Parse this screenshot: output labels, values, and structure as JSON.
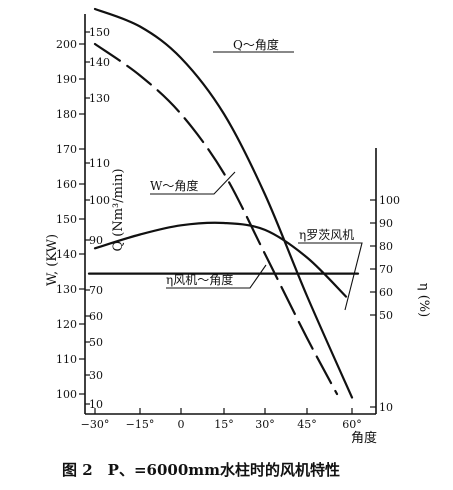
{
  "chart_data": {
    "type": "line",
    "caption": "图 2　P、=6000mm水柱时的风机特性",
    "xlabel": "角度",
    "x_ticks": [
      {
        "v": -30,
        "label": "−30°"
      },
      {
        "v": -15,
        "label": "−15°"
      },
      {
        "v": 0,
        "label": "0"
      },
      {
        "v": 15,
        "label": "15°"
      },
      {
        "v": 30,
        "label": "30°"
      },
      {
        "v": 45,
        "label": "45°"
      },
      {
        "v": 60,
        "label": "60°"
      }
    ],
    "xlim": [
      -32,
      62
    ],
    "axes": {
      "W": {
        "label": "W, (KW)",
        "ticks": [
          100,
          110,
          120,
          130,
          140,
          150,
          160,
          170,
          180,
          190,
          200
        ],
        "lim": [
          95,
          210
        ]
      },
      "Q": {
        "label": "Q (Nm³/min)",
        "ticks": [
          10,
          30,
          50,
          60,
          70,
          90,
          100,
          110,
          130,
          140,
          150
        ],
        "tick_labels": [
          "10",
          "30",
          "50",
          "60",
          "70",
          "90",
          "100",
          "110",
          "130",
          "140",
          "150"
        ]
      },
      "eta": {
        "label": "η (%)",
        "ticks": [
          10,
          50,
          60,
          70,
          80,
          90,
          100
        ],
        "lim": [
          5,
          125
        ]
      }
    },
    "series": [
      {
        "name": "Q～角度",
        "axis": "W",
        "dash": "solid",
        "points": [
          [
            -30,
            210
          ],
          [
            -15,
            205
          ],
          [
            0,
            196
          ],
          [
            15,
            180
          ],
          [
            30,
            157
          ],
          [
            45,
            128
          ],
          [
            60,
            99
          ]
        ]
      },
      {
        "name": "W～角度",
        "axis": "W",
        "dash": "dashed",
        "points": [
          [
            -30,
            200
          ],
          [
            -15,
            191
          ],
          [
            0,
            180
          ],
          [
            15,
            163
          ],
          [
            30,
            140
          ],
          [
            45,
            116
          ],
          [
            55,
            100
          ]
        ]
      },
      {
        "name": "η风机～角度",
        "axis": "eta",
        "dash": "solid",
        "points": [
          [
            -30,
            79
          ],
          [
            -15,
            85
          ],
          [
            0,
            89
          ],
          [
            15,
            90
          ],
          [
            30,
            87
          ],
          [
            45,
            75
          ],
          [
            58,
            58
          ]
        ]
      },
      {
        "name": "η罗茨风机",
        "axis": "eta",
        "dash": "solid",
        "points": [
          [
            -32,
            68
          ],
          [
            62,
            68
          ]
        ]
      }
    ],
    "grid": false,
    "legend": "none"
  }
}
